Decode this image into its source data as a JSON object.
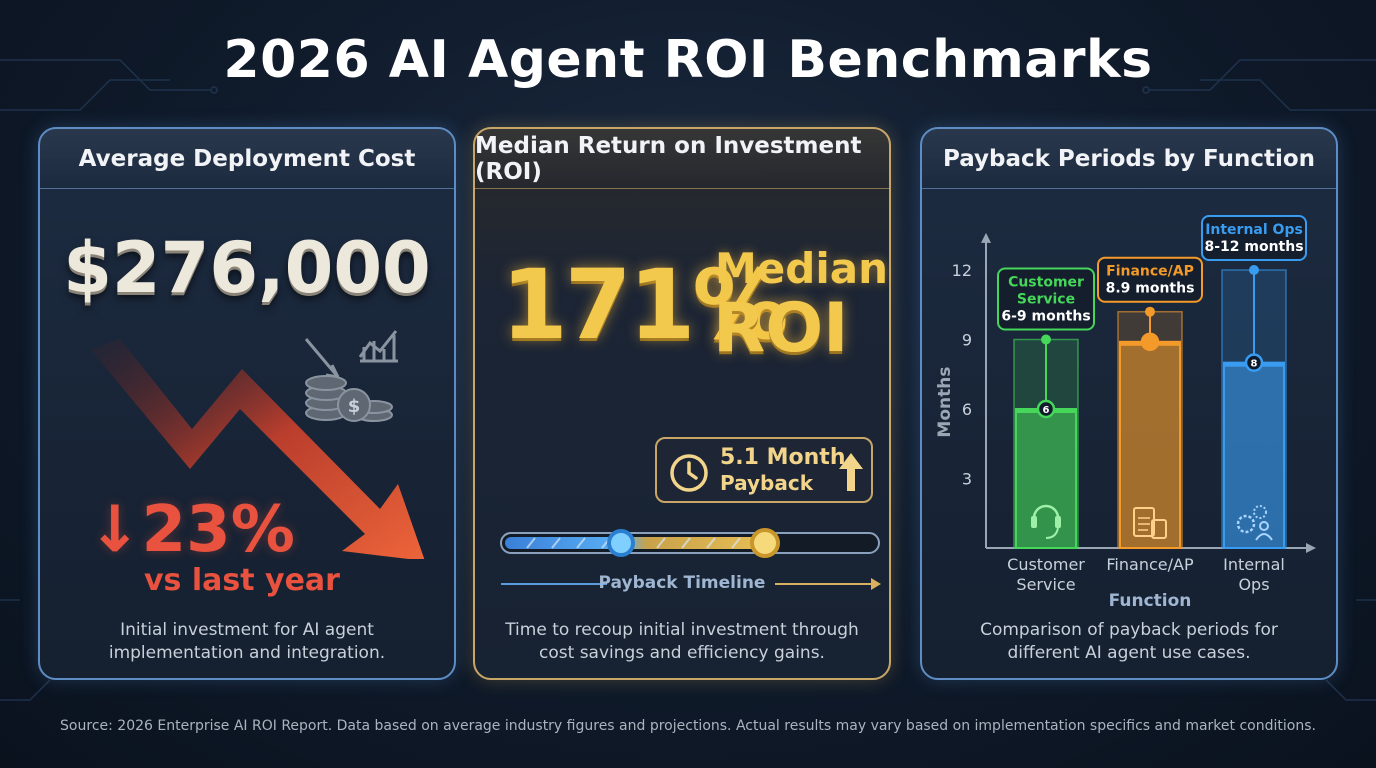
{
  "title": "2026 AI Agent ROI Benchmarks",
  "panel_cost": {
    "heading": "Average Deployment Cost",
    "amount": "$276,000",
    "change": "↓23%",
    "change_caption": "vs last year",
    "description_line1": "Initial investment for AI agent",
    "description_line2": "implementation and integration."
  },
  "panel_roi": {
    "heading": "Median Return on Investment (ROI)",
    "roi_value": "171%",
    "roi_label_top": "Median",
    "roi_label_bottom": "ROI",
    "payback_value": "5.1 Month",
    "payback_label": "Payback",
    "timeline_label": "Payback Timeline",
    "payback_months": 5.1,
    "description_line1": "Time to recoup initial investment through",
    "description_line2": "cost savings and efficiency gains."
  },
  "panel_payback": {
    "heading": "Payback Periods by Function",
    "description_line1": "Comparison of payback periods for",
    "description_line2": "different AI agent use cases."
  },
  "chart_data": {
    "type": "bar",
    "title": "Payback Periods by Function",
    "xlabel": "Function",
    "ylabel": "Months",
    "ylim": [
      0,
      13
    ],
    "yticks": [
      3,
      6,
      9,
      12
    ],
    "categories": [
      "Customer Service",
      "Finance/AP",
      "Internal Ops"
    ],
    "category_lines": [
      [
        "Customer",
        "Service"
      ],
      [
        "Finance/AP"
      ],
      [
        "Internal",
        "Ops"
      ]
    ],
    "ranges": [
      {
        "low": 6,
        "high": 9,
        "point": 6,
        "point_label": "6",
        "callout": [
          "Customer",
          "Service",
          "6-9 months"
        ],
        "color": "#45d65a"
      },
      {
        "low": 8.9,
        "high": 10.2,
        "point": 8.9,
        "point_label": "",
        "callout": [
          "Finance/AP",
          "8.9 months"
        ],
        "color": "#f39a2a"
      },
      {
        "low": 8,
        "high": 12,
        "point": 8,
        "point_label": "8",
        "callout": [
          "Internal Ops",
          "8-12 months"
        ],
        "color": "#3a9cf0"
      }
    ],
    "grid": false
  },
  "footer": "Source: 2026 Enterprise AI ROI Report. Data based on average industry figures and projections. Actual results may vary based on implementation specifics and market conditions."
}
